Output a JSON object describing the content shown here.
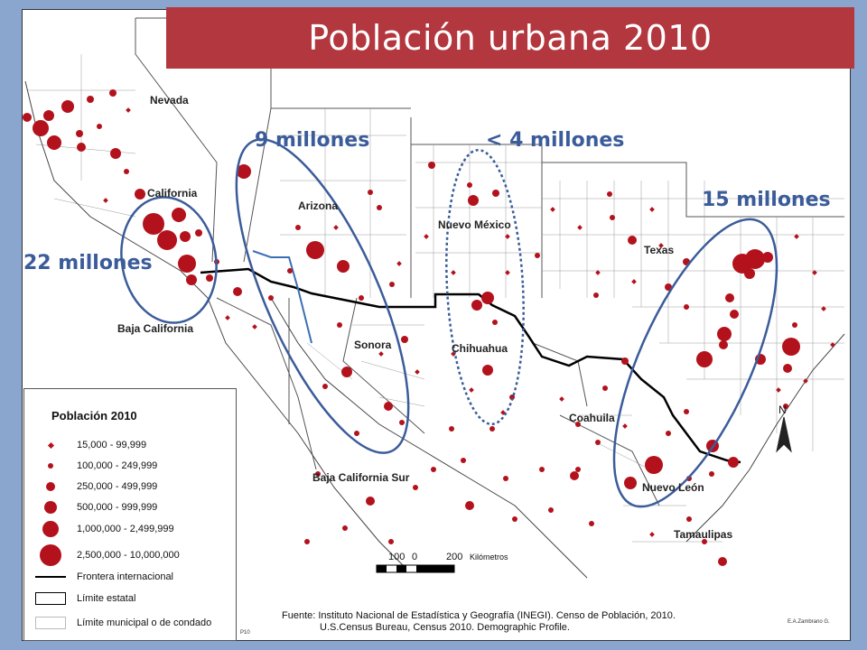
{
  "title": "Población urbana 2010",
  "colors": {
    "city": "#b3121c",
    "ellipse": "#3b5c9a",
    "banner": "#b3373f",
    "border_line": "#000000",
    "state_line": "#555555"
  },
  "states": {
    "nevada": "Nevada",
    "california": "California",
    "arizona": "Arizona",
    "nuevo_mexico": "Nuevo México",
    "texas": "Texas",
    "baja_california": "Baja California",
    "sonora": "Sonora",
    "chihuahua": "Chihuahua",
    "coahuila": "Coahuila",
    "nuevo_leon": "Nuevo León",
    "tamaulipas": "Tamaulipas",
    "baja_california_sur": "Baja California Sur"
  },
  "regions": {
    "california": "22 millones",
    "arizona": "9 millones",
    "nuevo_mexico": "< 4 millones",
    "texas": "15 millones"
  },
  "legend": {
    "title": "Población 2010",
    "classes": [
      {
        "label": "15,000 - 99,999",
        "symbol": "diamond"
      },
      {
        "label": "100,000 - 249,999",
        "symbol": "circle-xs"
      },
      {
        "label": "250,000 - 499,999",
        "symbol": "circle-s"
      },
      {
        "label": "500,000 - 999,999",
        "symbol": "circle-m"
      },
      {
        "label": "1,000,000 - 2,499,999",
        "symbol": "circle-l"
      },
      {
        "label": "2,500,000 - 10,000,000",
        "symbol": "circle-xl"
      }
    ],
    "lines": [
      {
        "label": "Frontera internacional",
        "symbol": "line"
      },
      {
        "label": "Límite estatal",
        "symbol": "box"
      },
      {
        "label": "Límite municipal o de condado",
        "symbol": "box-light"
      }
    ]
  },
  "scale": {
    "labels": [
      "100",
      "0",
      "200"
    ],
    "unit": "Kilómetros"
  },
  "north": "N",
  "source": {
    "line1": "Fuente: Instituto Nacional de Estadística y Geografía (INEGI). Censo de Población, 2010.",
    "line2": "U.S.Census Bureau, Census 2010. Demographic Profile."
  },
  "credit": "E.A.Zambrano G.",
  "page_code": "P10"
}
